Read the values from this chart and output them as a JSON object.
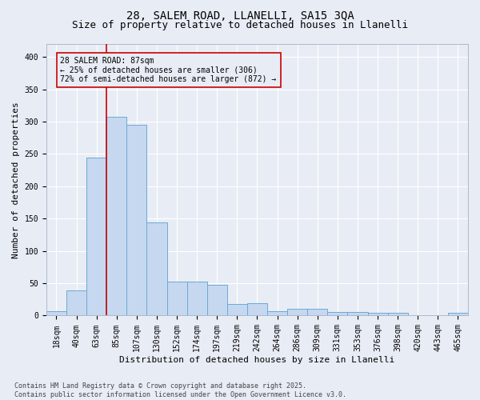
{
  "title1": "28, SALEM ROAD, LLANELLI, SA15 3QA",
  "title2": "Size of property relative to detached houses in Llanelli",
  "xlabel": "Distribution of detached houses by size in Llanelli",
  "ylabel": "Number of detached properties",
  "categories": [
    "18sqm",
    "40sqm",
    "63sqm",
    "85sqm",
    "107sqm",
    "130sqm",
    "152sqm",
    "174sqm",
    "197sqm",
    "219sqm",
    "242sqm",
    "264sqm",
    "286sqm",
    "309sqm",
    "331sqm",
    "353sqm",
    "376sqm",
    "398sqm",
    "420sqm",
    "443sqm",
    "465sqm"
  ],
  "values": [
    7,
    39,
    244,
    308,
    295,
    144,
    53,
    53,
    47,
    18,
    19,
    7,
    10,
    10,
    5,
    5,
    4,
    4,
    1,
    1,
    4
  ],
  "bar_color": "#c5d8f0",
  "bar_edge_color": "#6aaad4",
  "bg_color": "#e8ecf5",
  "grid_color": "#ffffff",
  "vline_x_index": 3,
  "vline_color": "#cc0000",
  "annotation_text": "28 SALEM ROAD: 87sqm\n← 25% of detached houses are smaller (306)\n72% of semi-detached houses are larger (872) →",
  "annotation_box_color": "#cc0000",
  "ylim": [
    0,
    420
  ],
  "yticks": [
    0,
    50,
    100,
    150,
    200,
    250,
    300,
    350,
    400
  ],
  "footnote": "Contains HM Land Registry data © Crown copyright and database right 2025.\nContains public sector information licensed under the Open Government Licence v3.0.",
  "title_fontsize": 10,
  "subtitle_fontsize": 9,
  "axis_label_fontsize": 8,
  "tick_fontsize": 7,
  "annot_fontsize": 7,
  "footnote_fontsize": 6
}
